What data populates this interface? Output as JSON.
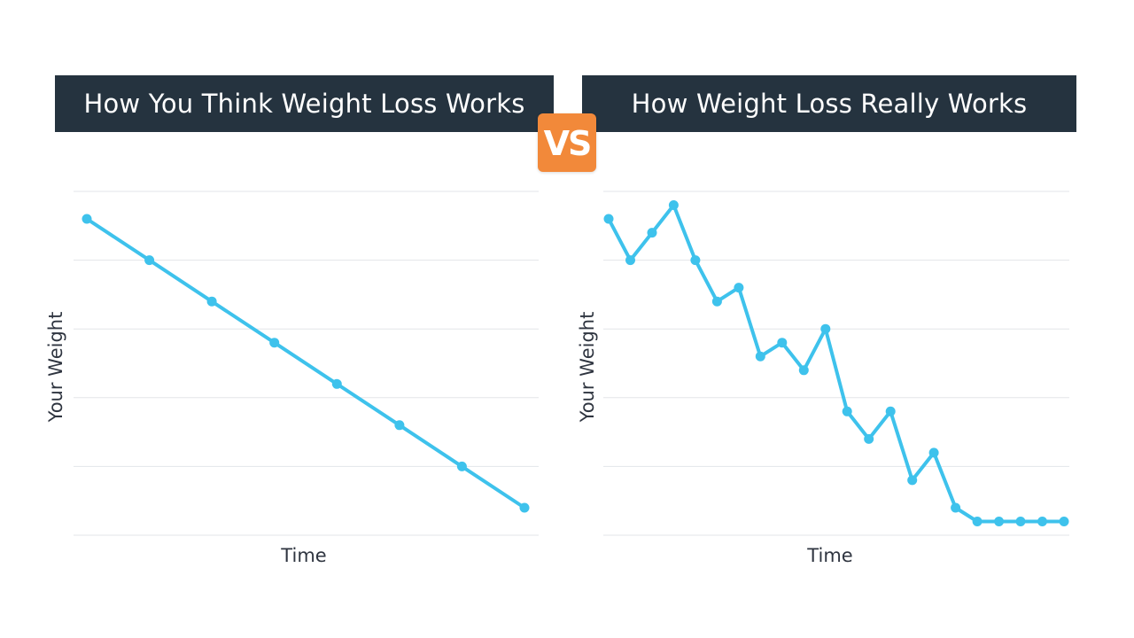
{
  "header": {
    "left_title": "How You Think Weight Loss Works",
    "right_title": "How Weight Loss Really Works",
    "vs_label": "VS"
  },
  "colors": {
    "banner_bg": "#25333f",
    "banner_text": "#ffffff",
    "vs_bg": "#f2893a",
    "line": "#3ec2ec",
    "grid": "#e3e6e9"
  },
  "chart_data": [
    {
      "type": "line",
      "xlabel": "Time",
      "ylabel": "Your Weight",
      "ylim": [
        0,
        5
      ],
      "grid": true,
      "x": [
        1,
        2,
        3,
        4,
        5,
        6,
        7,
        8
      ],
      "series": [
        {
          "values": [
            4.6,
            4.0,
            3.4,
            2.8,
            2.2,
            1.6,
            1.0,
            0.4
          ]
        }
      ]
    },
    {
      "type": "line",
      "xlabel": "Time",
      "ylabel": "Your Weight",
      "ylim": [
        0,
        5
      ],
      "grid": true,
      "x": [
        1,
        2,
        3,
        4,
        5,
        6,
        7,
        8,
        9,
        10,
        11,
        12,
        13,
        14,
        15,
        16,
        17,
        18,
        19,
        20,
        21,
        22
      ],
      "series": [
        {
          "values": [
            4.6,
            4.0,
            4.4,
            4.8,
            4.0,
            3.4,
            3.6,
            2.6,
            2.8,
            2.4,
            3.0,
            1.8,
            1.4,
            1.8,
            0.8,
            1.2,
            0.4,
            0.2,
            0.2,
            0.2,
            0.2,
            0.2
          ]
        }
      ]
    }
  ]
}
